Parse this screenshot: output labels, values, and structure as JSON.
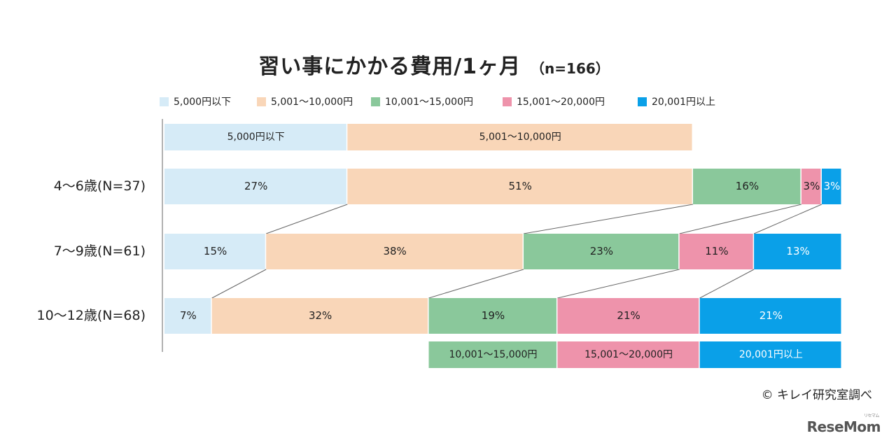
{
  "title": "習い事にかかる費用/1ヶ月",
  "subtitle": "（n=166）",
  "credit": "© キレイ研究室調べ",
  "watermark": "ReseMom",
  "watermark_small": "リセマム",
  "chart_data": {
    "type": "bar",
    "stacked": true,
    "orientation": "horizontal",
    "normalized": "percent",
    "title": "習い事にかかる費用/1ヶ月",
    "categories": [
      "4〜6歳(N=37)",
      "7〜9歳(N=61)",
      "10〜12歳(N=68)"
    ],
    "series": [
      {
        "name": "5,000円以下",
        "color": "#d6ebf7",
        "values": [
          27,
          15,
          7
        ]
      },
      {
        "name": "5,001〜10,000円",
        "color": "#f9d6b8",
        "values": [
          51,
          38,
          32
        ]
      },
      {
        "name": "10,001〜15,000円",
        "color": "#8ac89b",
        "values": [
          16,
          23,
          19
        ]
      },
      {
        "name": "15,001〜20,000円",
        "color": "#ee93ab",
        "values": [
          3,
          11,
          21
        ]
      },
      {
        "name": "20,001円以上",
        "color": "#0aa0e8",
        "values": [
          3,
          13,
          21
        ]
      }
    ],
    "value_suffix": "%",
    "legend": "top",
    "top_band_labels": [
      "5,000円以下",
      "5,001〜10,000円"
    ],
    "bottom_band_labels": [
      "10,001〜15,000円",
      "15,001〜20,000円",
      "20,001円以上"
    ]
  }
}
